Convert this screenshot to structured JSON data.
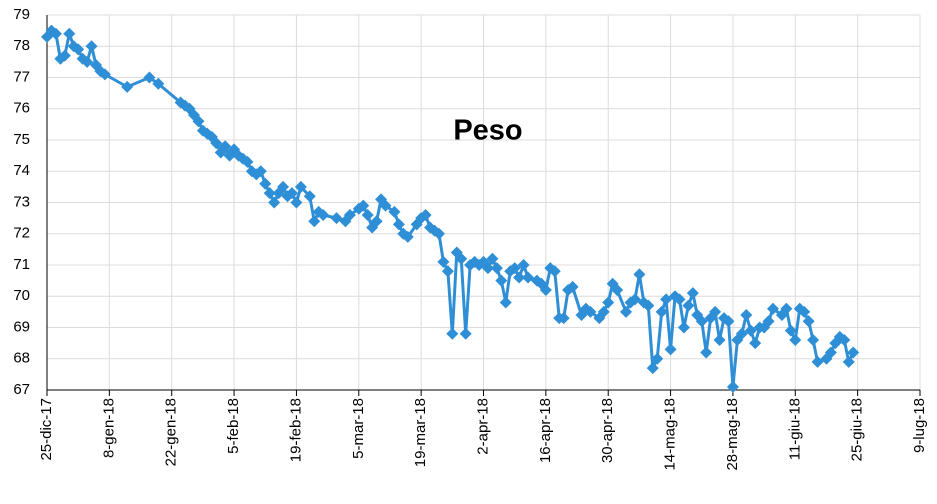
{
  "chart_data": {
    "type": "line",
    "title": "Peso",
    "color": "#2f8fd6",
    "grid": true,
    "x": [
      "2017-12-25",
      "2017-12-26",
      "2017-12-27",
      "2017-12-28",
      "2017-12-29",
      "2017-12-30",
      "2017-12-31",
      "2018-01-01",
      "2018-01-02",
      "2018-01-03",
      "2018-01-04",
      "2018-01-05",
      "2018-01-06",
      "2018-01-07",
      "2018-01-12",
      "2018-01-17",
      "2018-01-19",
      "2018-01-24",
      "2018-01-25",
      "2018-01-26",
      "2018-01-27",
      "2018-01-28",
      "2018-01-29",
      "2018-01-30",
      "2018-01-31",
      "2018-02-01",
      "2018-02-02",
      "2018-02-03",
      "2018-02-04",
      "2018-02-05",
      "2018-02-06",
      "2018-02-07",
      "2018-02-08",
      "2018-02-09",
      "2018-02-10",
      "2018-02-11",
      "2018-02-12",
      "2018-02-13",
      "2018-02-14",
      "2018-02-15",
      "2018-02-16",
      "2018-02-17",
      "2018-02-18",
      "2018-02-19",
      "2018-02-20",
      "2018-02-22",
      "2018-02-23",
      "2018-02-24",
      "2018-02-25",
      "2018-02-28",
      "2018-03-02",
      "2018-03-03",
      "2018-03-05",
      "2018-03-06",
      "2018-03-07",
      "2018-03-08",
      "2018-03-09",
      "2018-03-10",
      "2018-03-11",
      "2018-03-13",
      "2018-03-14",
      "2018-03-15",
      "2018-03-16",
      "2018-03-18",
      "2018-03-19",
      "2018-03-20",
      "2018-03-21",
      "2018-03-22",
      "2018-03-23",
      "2018-03-24",
      "2018-03-25",
      "2018-03-26",
      "2018-03-27",
      "2018-03-28",
      "2018-03-29",
      "2018-03-30",
      "2018-03-31",
      "2018-04-01",
      "2018-04-02",
      "2018-04-03",
      "2018-04-04",
      "2018-04-05",
      "2018-04-06",
      "2018-04-07",
      "2018-04-08",
      "2018-04-09",
      "2018-04-10",
      "2018-04-11",
      "2018-04-12",
      "2018-04-14",
      "2018-04-15",
      "2018-04-16",
      "2018-04-17",
      "2018-04-18",
      "2018-04-19",
      "2018-04-20",
      "2018-04-21",
      "2018-04-22",
      "2018-04-24",
      "2018-04-25",
      "2018-04-26",
      "2018-04-28",
      "2018-04-29",
      "2018-04-30",
      "2018-05-01",
      "2018-05-02",
      "2018-05-04",
      "2018-05-05",
      "2018-05-06",
      "2018-05-07",
      "2018-05-08",
      "2018-05-09",
      "2018-05-10",
      "2018-05-11",
      "2018-05-12",
      "2018-05-13",
      "2018-05-14",
      "2018-05-15",
      "2018-05-16",
      "2018-05-17",
      "2018-05-18",
      "2018-05-19",
      "2018-05-20",
      "2018-05-21",
      "2018-05-22",
      "2018-05-23",
      "2018-05-24",
      "2018-05-25",
      "2018-05-26",
      "2018-05-27",
      "2018-05-28",
      "2018-05-29",
      "2018-05-30",
      "2018-05-31",
      "2018-06-01",
      "2018-06-02",
      "2018-06-03",
      "2018-06-04",
      "2018-06-05",
      "2018-06-06",
      "2018-06-08",
      "2018-06-09",
      "2018-06-10",
      "2018-06-11",
      "2018-06-12",
      "2018-06-13",
      "2018-06-14",
      "2018-06-15",
      "2018-06-16",
      "2018-06-18",
      "2018-06-19",
      "2018-06-20",
      "2018-06-21",
      "2018-06-22",
      "2018-06-23",
      "2018-06-24"
    ],
    "values": [
      78.3,
      78.5,
      78.4,
      77.6,
      77.7,
      78.4,
      78.0,
      77.9,
      77.6,
      77.5,
      78.0,
      77.4,
      77.2,
      77.1,
      76.7,
      77.0,
      76.8,
      76.2,
      76.1,
      76.0,
      75.8,
      75.6,
      75.3,
      75.2,
      75.1,
      74.9,
      74.6,
      74.8,
      74.5,
      74.7,
      74.5,
      74.4,
      74.3,
      74.0,
      73.9,
      74.0,
      73.6,
      73.3,
      73.0,
      73.3,
      73.5,
      73.2,
      73.3,
      73.0,
      73.5,
      73.2,
      72.4,
      72.7,
      72.6,
      72.5,
      72.4,
      72.6,
      72.8,
      72.9,
      72.6,
      72.2,
      72.4,
      73.1,
      72.9,
      72.7,
      72.3,
      72.0,
      71.9,
      72.3,
      72.5,
      72.6,
      72.2,
      72.1,
      72.0,
      71.1,
      70.8,
      68.8,
      71.4,
      71.2,
      68.8,
      71.0,
      71.1,
      71.0,
      71.1,
      70.9,
      71.2,
      70.9,
      70.5,
      69.8,
      70.8,
      70.9,
      70.6,
      71.0,
      70.6,
      70.5,
      70.4,
      70.2,
      70.9,
      70.8,
      69.3,
      69.3,
      70.2,
      70.3,
      69.4,
      69.6,
      69.5,
      69.3,
      69.5,
      69.8,
      70.4,
      70.2,
      69.5,
      69.8,
      69.9,
      70.7,
      69.8,
      69.7,
      67.7,
      68.0,
      69.5,
      69.9,
      68.3,
      70.0,
      69.9,
      69.0,
      69.7,
      70.1,
      69.4,
      69.2,
      68.2,
      69.3,
      69.5,
      68.6,
      69.3,
      69.2,
      67.1,
      68.6,
      68.8,
      69.4,
      68.9,
      68.5,
      69.0,
      69.0,
      69.2,
      69.6,
      69.4,
      69.6,
      68.9,
      68.6,
      69.6,
      69.5,
      69.2,
      68.6,
      67.9,
      68.0,
      68.2,
      68.5,
      68.7,
      68.6,
      67.9,
      68.2
    ],
    "xlim": [
      "2017-12-25",
      "2018-07-09"
    ],
    "xticks": [
      {
        "value": "2017-12-25",
        "label": "25-dic-17"
      },
      {
        "value": "2018-01-08",
        "label": "8-gen-18"
      },
      {
        "value": "2018-01-22",
        "label": "22-gen-18"
      },
      {
        "value": "2018-02-05",
        "label": "5-feb-18"
      },
      {
        "value": "2018-02-19",
        "label": "19-feb-18"
      },
      {
        "value": "2018-03-05",
        "label": "5-mar-18"
      },
      {
        "value": "2018-03-19",
        "label": "19-mar-18"
      },
      {
        "value": "2018-04-02",
        "label": "2-apr-18"
      },
      {
        "value": "2018-04-16",
        "label": "16-apr-18"
      },
      {
        "value": "2018-04-30",
        "label": "30-apr-18"
      },
      {
        "value": "2018-05-14",
        "label": "14-mag-18"
      },
      {
        "value": "2018-05-28",
        "label": "28-mag-18"
      },
      {
        "value": "2018-06-11",
        "label": "11-giu-18"
      },
      {
        "value": "2018-06-25",
        "label": "25-giu-18"
      },
      {
        "value": "2018-07-09",
        "label": "9-lug-18"
      }
    ],
    "ylim": [
      67,
      79
    ],
    "yticks": [
      67,
      68,
      69,
      70,
      71,
      72,
      73,
      74,
      75,
      76,
      77,
      78,
      79
    ]
  }
}
